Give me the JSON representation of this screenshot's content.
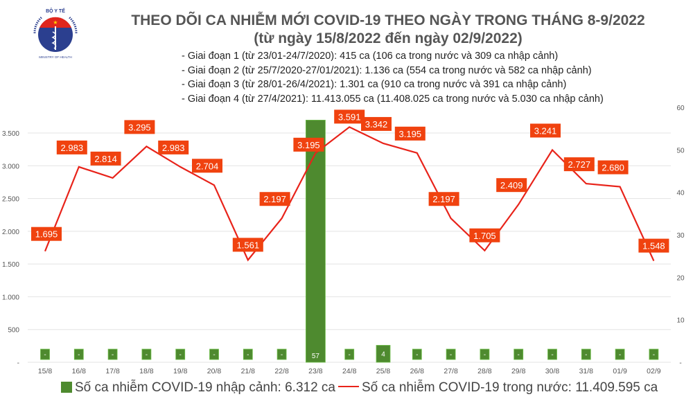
{
  "logo": {
    "top_text": "BỘ Y TẾ",
    "bottom_text": "MINISTRY OF HEALTH"
  },
  "title_line1": "THEO DÕI CA NHIỄM MỚI COVID-19 THEO NGÀY TRONG THÁNG 8-9/2022",
  "title_line2": "(từ ngày 15/8/2022 đến ngày 02/9/2022)",
  "notes": [
    "- Giai đoạn 1 (từ 23/01-24/7/2020): 415 ca (106 ca trong nước và 309 ca nhập cảnh)",
    "- Giai đoạn 2 (từ 25/7/2020-27/01/2021): 1.136 ca (554 ca trong nước và 582 ca nhập cảnh)",
    "- Giai đoạn 3 (từ 28/01-26/4/2021): 1.301 ca (910 ca trong nước và 391 ca nhập cảnh)",
    "- Giai đoạn 4 (từ 27/4/2021): 11.413.055 ca (11.408.025 ca trong nước và 5.030 ca nhập cảnh)"
  ],
  "chart_data": {
    "type": "bar+line",
    "categories": [
      "15/8",
      "16/8",
      "17/8",
      "18/8",
      "19/8",
      "20/8",
      "21/8",
      "22/8",
      "23/8",
      "24/8",
      "25/8",
      "26/8",
      "27/8",
      "28/8",
      "29/8",
      "30/8",
      "31/8",
      "01/9",
      "02/9"
    ],
    "series": [
      {
        "name": "Số ca nhiễm COVID-19 nhập cảnh: 6.312 ca",
        "type": "bar",
        "axis": "right",
        "color": "#4e8a2f",
        "values": [
          0,
          0,
          0,
          0,
          0,
          0,
          0,
          0,
          57,
          0,
          4,
          0,
          0,
          0,
          0,
          0,
          0,
          0,
          0
        ],
        "labels": [
          "-",
          "-",
          "-",
          "-",
          "-",
          "-",
          "-",
          "-",
          "57",
          "-",
          "4",
          "-",
          "-",
          "-",
          "-",
          "-",
          "-",
          "-",
          "-"
        ]
      },
      {
        "name": "Số ca nhiễm COVID-19 trong nước: 11.409.595 ca",
        "type": "line",
        "axis": "left",
        "color": "#e8231a",
        "values": [
          1695,
          2983,
          2814,
          3295,
          2983,
          2704,
          1561,
          2197,
          3195,
          3591,
          3342,
          3195,
          2197,
          1705,
          2409,
          3241,
          2727,
          2680,
          1548
        ],
        "labels": [
          "1.695",
          "2.983",
          "2.814",
          "3.295",
          "2.983",
          "2.704",
          "1.561",
          "2.197",
          "3.195",
          "3.591",
          "3.342",
          "3.195",
          "2.197",
          "1.705",
          "2.409",
          "3.241",
          "2.727",
          "2.680",
          "1.548"
        ]
      }
    ],
    "left_axis": {
      "range": [
        0,
        3500
      ],
      "ticks": [
        "-",
        "500",
        "1.000",
        "1.500",
        "2.000",
        "2.500",
        "3.000",
        "3.500"
      ]
    },
    "right_axis": {
      "range": [
        0,
        60
      ],
      "ticks": [
        "-",
        "10",
        "20",
        "30",
        "40",
        "50",
        "60"
      ]
    },
    "grid": true,
    "legend_position": "bottom"
  }
}
